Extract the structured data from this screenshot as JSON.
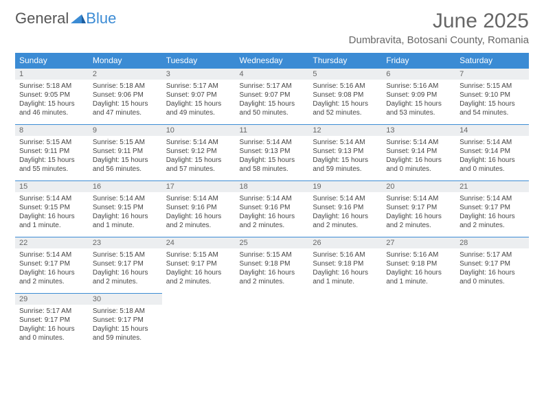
{
  "brand": {
    "part1": "General",
    "part2": "Blue"
  },
  "title": "June 2025",
  "location": "Dumbravita, Botosani County, Romania",
  "colors": {
    "header_bg": "#3b8bd4",
    "header_text": "#ffffff",
    "daynum_bg": "#eceef0",
    "border": "#3b8bd4",
    "text": "#444444",
    "title": "#666666"
  },
  "weekdays": [
    "Sunday",
    "Monday",
    "Tuesday",
    "Wednesday",
    "Thursday",
    "Friday",
    "Saturday"
  ],
  "days": [
    {
      "n": "1",
      "sr": "Sunrise: 5:18 AM",
      "ss": "Sunset: 9:05 PM",
      "dl1": "Daylight: 15 hours",
      "dl2": "and 46 minutes."
    },
    {
      "n": "2",
      "sr": "Sunrise: 5:18 AM",
      "ss": "Sunset: 9:06 PM",
      "dl1": "Daylight: 15 hours",
      "dl2": "and 47 minutes."
    },
    {
      "n": "3",
      "sr": "Sunrise: 5:17 AM",
      "ss": "Sunset: 9:07 PM",
      "dl1": "Daylight: 15 hours",
      "dl2": "and 49 minutes."
    },
    {
      "n": "4",
      "sr": "Sunrise: 5:17 AM",
      "ss": "Sunset: 9:07 PM",
      "dl1": "Daylight: 15 hours",
      "dl2": "and 50 minutes."
    },
    {
      "n": "5",
      "sr": "Sunrise: 5:16 AM",
      "ss": "Sunset: 9:08 PM",
      "dl1": "Daylight: 15 hours",
      "dl2": "and 52 minutes."
    },
    {
      "n": "6",
      "sr": "Sunrise: 5:16 AM",
      "ss": "Sunset: 9:09 PM",
      "dl1": "Daylight: 15 hours",
      "dl2": "and 53 minutes."
    },
    {
      "n": "7",
      "sr": "Sunrise: 5:15 AM",
      "ss": "Sunset: 9:10 PM",
      "dl1": "Daylight: 15 hours",
      "dl2": "and 54 minutes."
    },
    {
      "n": "8",
      "sr": "Sunrise: 5:15 AM",
      "ss": "Sunset: 9:11 PM",
      "dl1": "Daylight: 15 hours",
      "dl2": "and 55 minutes."
    },
    {
      "n": "9",
      "sr": "Sunrise: 5:15 AM",
      "ss": "Sunset: 9:11 PM",
      "dl1": "Daylight: 15 hours",
      "dl2": "and 56 minutes."
    },
    {
      "n": "10",
      "sr": "Sunrise: 5:14 AM",
      "ss": "Sunset: 9:12 PM",
      "dl1": "Daylight: 15 hours",
      "dl2": "and 57 minutes."
    },
    {
      "n": "11",
      "sr": "Sunrise: 5:14 AM",
      "ss": "Sunset: 9:13 PM",
      "dl1": "Daylight: 15 hours",
      "dl2": "and 58 minutes."
    },
    {
      "n": "12",
      "sr": "Sunrise: 5:14 AM",
      "ss": "Sunset: 9:13 PM",
      "dl1": "Daylight: 15 hours",
      "dl2": "and 59 minutes."
    },
    {
      "n": "13",
      "sr": "Sunrise: 5:14 AM",
      "ss": "Sunset: 9:14 PM",
      "dl1": "Daylight: 16 hours",
      "dl2": "and 0 minutes."
    },
    {
      "n": "14",
      "sr": "Sunrise: 5:14 AM",
      "ss": "Sunset: 9:14 PM",
      "dl1": "Daylight: 16 hours",
      "dl2": "and 0 minutes."
    },
    {
      "n": "15",
      "sr": "Sunrise: 5:14 AM",
      "ss": "Sunset: 9:15 PM",
      "dl1": "Daylight: 16 hours",
      "dl2": "and 1 minute."
    },
    {
      "n": "16",
      "sr": "Sunrise: 5:14 AM",
      "ss": "Sunset: 9:15 PM",
      "dl1": "Daylight: 16 hours",
      "dl2": "and 1 minute."
    },
    {
      "n": "17",
      "sr": "Sunrise: 5:14 AM",
      "ss": "Sunset: 9:16 PM",
      "dl1": "Daylight: 16 hours",
      "dl2": "and 2 minutes."
    },
    {
      "n": "18",
      "sr": "Sunrise: 5:14 AM",
      "ss": "Sunset: 9:16 PM",
      "dl1": "Daylight: 16 hours",
      "dl2": "and 2 minutes."
    },
    {
      "n": "19",
      "sr": "Sunrise: 5:14 AM",
      "ss": "Sunset: 9:16 PM",
      "dl1": "Daylight: 16 hours",
      "dl2": "and 2 minutes."
    },
    {
      "n": "20",
      "sr": "Sunrise: 5:14 AM",
      "ss": "Sunset: 9:17 PM",
      "dl1": "Daylight: 16 hours",
      "dl2": "and 2 minutes."
    },
    {
      "n": "21",
      "sr": "Sunrise: 5:14 AM",
      "ss": "Sunset: 9:17 PM",
      "dl1": "Daylight: 16 hours",
      "dl2": "and 2 minutes."
    },
    {
      "n": "22",
      "sr": "Sunrise: 5:14 AM",
      "ss": "Sunset: 9:17 PM",
      "dl1": "Daylight: 16 hours",
      "dl2": "and 2 minutes."
    },
    {
      "n": "23",
      "sr": "Sunrise: 5:15 AM",
      "ss": "Sunset: 9:17 PM",
      "dl1": "Daylight: 16 hours",
      "dl2": "and 2 minutes."
    },
    {
      "n": "24",
      "sr": "Sunrise: 5:15 AM",
      "ss": "Sunset: 9:17 PM",
      "dl1": "Daylight: 16 hours",
      "dl2": "and 2 minutes."
    },
    {
      "n": "25",
      "sr": "Sunrise: 5:15 AM",
      "ss": "Sunset: 9:18 PM",
      "dl1": "Daylight: 16 hours",
      "dl2": "and 2 minutes."
    },
    {
      "n": "26",
      "sr": "Sunrise: 5:16 AM",
      "ss": "Sunset: 9:18 PM",
      "dl1": "Daylight: 16 hours",
      "dl2": "and 1 minute."
    },
    {
      "n": "27",
      "sr": "Sunrise: 5:16 AM",
      "ss": "Sunset: 9:18 PM",
      "dl1": "Daylight: 16 hours",
      "dl2": "and 1 minute."
    },
    {
      "n": "28",
      "sr": "Sunrise: 5:17 AM",
      "ss": "Sunset: 9:17 PM",
      "dl1": "Daylight: 16 hours",
      "dl2": "and 0 minutes."
    },
    {
      "n": "29",
      "sr": "Sunrise: 5:17 AM",
      "ss": "Sunset: 9:17 PM",
      "dl1": "Daylight: 16 hours",
      "dl2": "and 0 minutes."
    },
    {
      "n": "30",
      "sr": "Sunrise: 5:18 AM",
      "ss": "Sunset: 9:17 PM",
      "dl1": "Daylight: 15 hours",
      "dl2": "and 59 minutes."
    }
  ]
}
